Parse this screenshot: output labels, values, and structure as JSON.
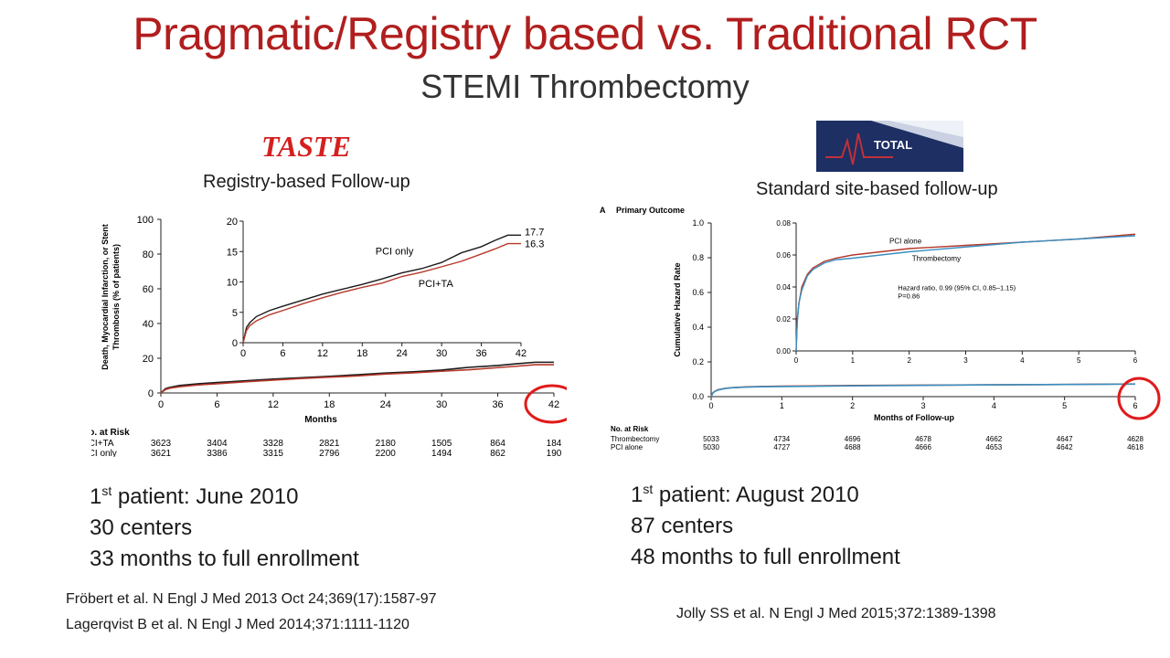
{
  "title": "Pragmatic/Registry based vs. Traditional RCT",
  "subtitle": "STEMI Thrombectomy",
  "left": {
    "trial_name": "TASTE",
    "follow_up_label": "Registry-based Follow-up",
    "bullets": {
      "line1_sup": "st",
      "line1_rest": " patient: June 2010",
      "line1_num": "1",
      "line2": "30 centers",
      "line3": "33 months to full enrollment"
    },
    "citations": [
      "Fröbert et al. N Engl J Med 2013 Oct 24;369(17):1587-97",
      "Lagerqvist B et al. N Engl J Med 2014;371:1111-1120"
    ]
  },
  "right": {
    "logo_text": "TOTAL",
    "follow_up_label": "Standard site-based follow-up",
    "bullets": {
      "line1_num": "1",
      "line1_sup": "st",
      "line1_rest": " patient: August 2010",
      "line2": "87 centers",
      "line3": "48 months to full enrollment"
    },
    "citations": [
      "Jolly SS et al. N Engl J Med 2015;372:1389-1398"
    ]
  },
  "chart_data": [
    {
      "id": "taste",
      "type": "line",
      "ylabel": "Death, Myocardial Infarction, or Stent Thrombosis (% of patients)",
      "xlabel": "Months",
      "xlim": [
        0,
        42
      ],
      "ylim": [
        0,
        100
      ],
      "xticks": [
        0,
        6,
        12,
        18,
        24,
        30,
        36,
        42
      ],
      "yticks": [
        0,
        20,
        40,
        60,
        80,
        100
      ],
      "colors": {
        "PCI only": "#1a1a1a",
        "PCI+TA": "#b5382a"
      },
      "series": [
        {
          "name": "PCI only",
          "x": [
            0,
            0.5,
            1,
            2,
            4,
            6,
            9,
            12,
            15,
            18,
            21,
            24,
            27,
            30,
            33,
            36,
            38,
            40,
            42
          ],
          "y": [
            0,
            2.5,
            3.3,
            4.3,
            5.3,
            6.0,
            7.0,
            8.0,
            8.8,
            9.6,
            10.5,
            11.5,
            12.2,
            13.2,
            14.8,
            15.8,
            16.8,
            17.7,
            17.7
          ]
        },
        {
          "name": "PCI+TA",
          "x": [
            0,
            0.5,
            1,
            2,
            4,
            6,
            9,
            12,
            15,
            18,
            21,
            24,
            27,
            30,
            33,
            36,
            38,
            40,
            42
          ],
          "y": [
            0,
            2.0,
            2.8,
            3.6,
            4.6,
            5.3,
            6.4,
            7.4,
            8.3,
            9.1,
            9.8,
            10.9,
            11.6,
            12.5,
            13.4,
            14.6,
            15.4,
            16.3,
            16.3
          ]
        }
      ],
      "inset": {
        "xlim": [
          0,
          42
        ],
        "ylim": [
          0,
          20
        ],
        "xticks": [
          0,
          6,
          12,
          18,
          24,
          30,
          36,
          42
        ],
        "yticks": [
          0,
          5,
          10,
          15,
          20
        ]
      },
      "end_labels": [
        "17.7",
        "16.3"
      ],
      "risk_table": {
        "title": "No. at Risk",
        "rows": [
          {
            "label": "PCI+TA",
            "values": [
              "3623",
              "3404",
              "3328",
              "2821",
              "2180",
              "1505",
              "864",
              "184"
            ]
          },
          {
            "label": "PCI only",
            "values": [
              "3621",
              "3386",
              "3315",
              "2796",
              "2200",
              "1494",
              "862",
              "190"
            ]
          }
        ]
      },
      "highlight_circle_at_x": 42
    },
    {
      "id": "total",
      "type": "line",
      "panel_label": "A",
      "title": "Primary Outcome",
      "ylabel": "Cumulative Hazard Rate",
      "xlabel": "Months of Follow-up",
      "xlim": [
        0,
        6
      ],
      "ylim": [
        0,
        1.0
      ],
      "xticks": [
        0,
        1,
        2,
        3,
        4,
        5,
        6
      ],
      "yticks": [
        "0.0",
        "0.2",
        "0.4",
        "0.6",
        "0.8",
        "1.0"
      ],
      "colors": {
        "PCI alone": "#b5382a",
        "Thrombectomy": "#3a8fc0"
      },
      "series": [
        {
          "name": "PCI alone",
          "x": [
            0,
            0.02,
            0.05,
            0.1,
            0.2,
            0.3,
            0.5,
            0.7,
            1,
            1.5,
            2,
            3,
            4,
            5,
            6
          ],
          "y": [
            0,
            0.02,
            0.03,
            0.04,
            0.048,
            0.052,
            0.056,
            0.058,
            0.06,
            0.062,
            0.064,
            0.066,
            0.068,
            0.07,
            0.073
          ]
        },
        {
          "name": "Thrombectomy",
          "x": [
            0,
            0.02,
            0.05,
            0.1,
            0.2,
            0.3,
            0.5,
            0.7,
            1,
            1.5,
            2,
            3,
            4,
            5,
            6
          ],
          "y": [
            0,
            0.018,
            0.03,
            0.038,
            0.047,
            0.051,
            0.055,
            0.057,
            0.058,
            0.06,
            0.062,
            0.065,
            0.068,
            0.07,
            0.072
          ]
        }
      ],
      "inset": {
        "xlim": [
          0,
          6
        ],
        "ylim": [
          0,
          0.08
        ],
        "xticks": [
          0,
          1,
          2,
          3,
          4,
          5,
          6
        ],
        "yticks": [
          "0.00",
          "0.02",
          "0.04",
          "0.06",
          "0.08"
        ]
      },
      "annotation": [
        "Hazard ratio, 0.99 (95% CI, 0.85–1.15)",
        "P=0.86"
      ],
      "risk_table": {
        "title": "No. at Risk",
        "rows": [
          {
            "label": "Thrombectomy",
            "values": [
              "5033",
              "4734",
              "4696",
              "4678",
              "4662",
              "4647",
              "4628"
            ]
          },
          {
            "label": "PCI alone",
            "values": [
              "5030",
              "4727",
              "4688",
              "4666",
              "4653",
              "4642",
              "4618"
            ]
          }
        ]
      },
      "highlight_circle_at_x": 6
    }
  ]
}
